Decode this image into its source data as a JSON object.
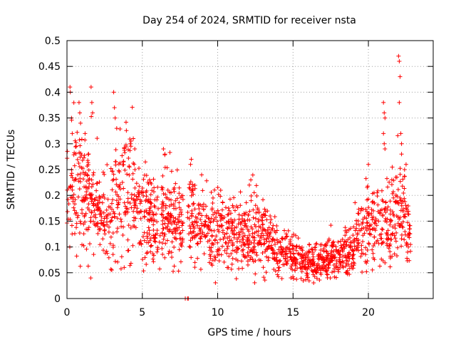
{
  "chart_data": {
    "type": "scatter",
    "title": "Day 254 of 2024, SRMTID for receiver nsta",
    "xlabel": "GPS time / hours",
    "ylabel": "SRMTID / TECUs",
    "xlim": [
      0,
      24.3
    ],
    "ylim": [
      0,
      0.5
    ],
    "xticks": [
      0,
      5,
      10,
      15,
      20
    ],
    "xtick_labels": [
      "0",
      "5",
      "10",
      "15",
      "20"
    ],
    "yticks": [
      0,
      0.05,
      0.1,
      0.15,
      0.2,
      0.25,
      0.3,
      0.35,
      0.4,
      0.45,
      0.5
    ],
    "ytick_labels": [
      "0",
      "0.05",
      "0.1",
      "0.15",
      "0.2",
      "0.25",
      "0.3",
      "0.35",
      "0.4",
      "0.45",
      "0.5"
    ],
    "grid": true,
    "marker": "+",
    "series_color": "#ff0000",
    "trend_knots": [
      [
        0.0,
        0.19
      ],
      [
        0.5,
        0.22
      ],
      [
        1.0,
        0.22
      ],
      [
        1.5,
        0.2
      ],
      [
        2.0,
        0.18
      ],
      [
        2.5,
        0.17
      ],
      [
        3.0,
        0.17
      ],
      [
        3.5,
        0.2
      ],
      [
        4.0,
        0.22
      ],
      [
        4.5,
        0.19
      ],
      [
        5.0,
        0.17
      ],
      [
        5.5,
        0.16
      ],
      [
        6.0,
        0.15
      ],
      [
        6.5,
        0.17
      ],
      [
        7.0,
        0.16
      ],
      [
        7.5,
        0.15
      ],
      [
        8.0,
        0.14
      ],
      [
        8.5,
        0.15
      ],
      [
        9.0,
        0.14
      ],
      [
        9.5,
        0.13
      ],
      [
        10.0,
        0.14
      ],
      [
        10.5,
        0.12
      ],
      [
        11.0,
        0.12
      ],
      [
        11.5,
        0.13
      ],
      [
        12.0,
        0.12
      ],
      [
        12.5,
        0.13
      ],
      [
        13.0,
        0.13
      ],
      [
        13.5,
        0.12
      ],
      [
        14.0,
        0.08
      ],
      [
        14.5,
        0.09
      ],
      [
        15.0,
        0.08
      ],
      [
        15.5,
        0.07
      ],
      [
        16.0,
        0.07
      ],
      [
        16.5,
        0.07
      ],
      [
        17.0,
        0.07
      ],
      [
        17.5,
        0.08
      ],
      [
        18.0,
        0.08
      ],
      [
        18.5,
        0.09
      ],
      [
        19.0,
        0.1
      ],
      [
        19.5,
        0.14
      ],
      [
        20.0,
        0.15
      ],
      [
        20.5,
        0.15
      ],
      [
        21.0,
        0.14
      ],
      [
        21.5,
        0.15
      ],
      [
        22.0,
        0.18
      ],
      [
        22.5,
        0.15
      ],
      [
        22.8,
        0.11
      ]
    ],
    "random_seed": 254,
    "n_points": 1900,
    "x_range": [
      0.0,
      22.8
    ],
    "gap": [
      7.7,
      8.0
    ],
    "zero_points": [
      [
        7.85,
        0.0
      ],
      [
        8.0,
        0.0
      ],
      [
        8.05,
        0.0
      ]
    ],
    "notable_points": [
      [
        0.2,
        0.41
      ],
      [
        0.22,
        0.4
      ],
      [
        0.3,
        0.35
      ],
      [
        0.35,
        0.32
      ],
      [
        0.8,
        0.38
      ],
      [
        0.85,
        0.36
      ],
      [
        0.9,
        0.34
      ],
      [
        1.2,
        0.32
      ],
      [
        1.6,
        0.41
      ],
      [
        1.65,
        0.38
      ],
      [
        1.7,
        0.36
      ],
      [
        3.1,
        0.4
      ],
      [
        3.15,
        0.37
      ],
      [
        3.2,
        0.35
      ],
      [
        3.3,
        0.33
      ],
      [
        4.2,
        0.3
      ],
      [
        4.4,
        0.31
      ],
      [
        4.5,
        0.29
      ],
      [
        6.4,
        0.29
      ],
      [
        6.5,
        0.28
      ],
      [
        8.2,
        0.26
      ],
      [
        8.25,
        0.27
      ],
      [
        10.2,
        0.21
      ],
      [
        11.7,
        0.0853
      ],
      [
        11.8,
        0.08
      ],
      [
        12.1,
        0.22
      ],
      [
        12.2,
        0.23
      ],
      [
        20.0,
        0.26
      ],
      [
        21.0,
        0.38
      ],
      [
        21.05,
        0.36
      ],
      [
        21.1,
        0.35
      ],
      [
        21.0,
        0.32
      ],
      [
        21.05,
        0.3
      ],
      [
        21.1,
        0.29
      ],
      [
        22.0,
        0.47
      ],
      [
        22.05,
        0.46
      ],
      [
        22.1,
        0.43
      ],
      [
        22.05,
        0.38
      ],
      [
        22.15,
        0.32
      ],
      [
        22.2,
        0.3
      ],
      [
        22.2,
        0.28
      ],
      [
        22.5,
        0.26
      ],
      [
        22.4,
        0.25
      ],
      [
        22.6,
        0.09
      ],
      [
        22.65,
        0.1
      ]
    ]
  }
}
